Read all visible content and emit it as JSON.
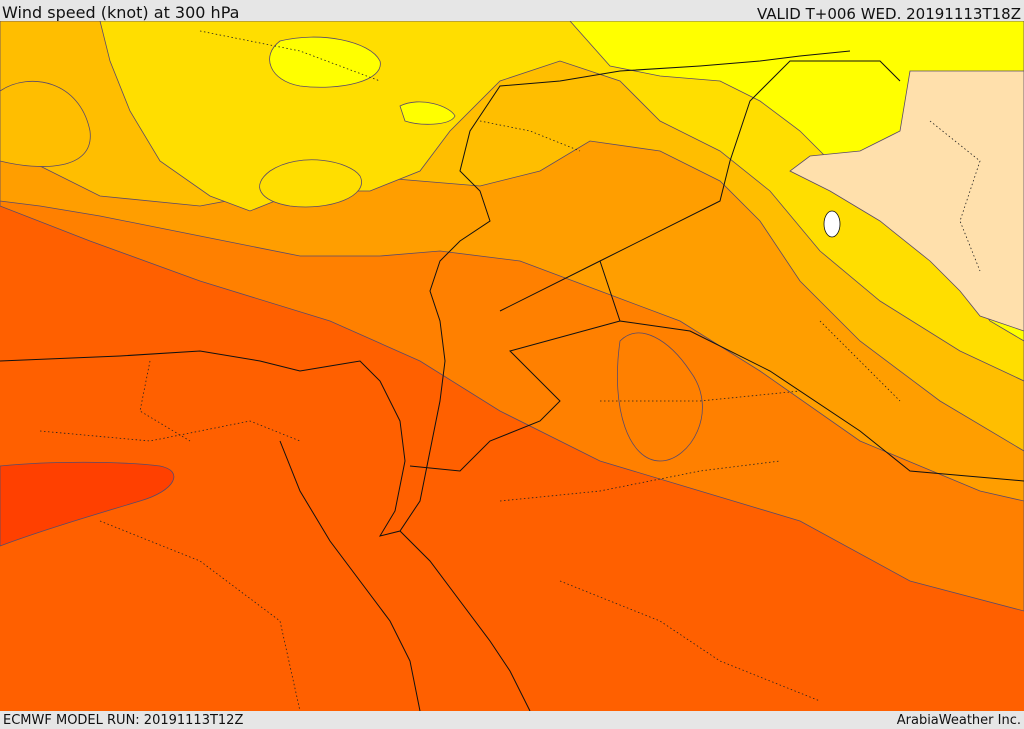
{
  "header": {
    "title": "Wind speed (knot) at 300 hPa",
    "valid": "VALID T+006 WED. 20191113T18Z"
  },
  "footer": {
    "model_run": "ECMWF MODEL RUN: 20191113T12Z",
    "credit": "ArabiaWeather Inc."
  },
  "colors": {
    "lightest": "#ffe0ac",
    "yellow": "#ffff00",
    "yellow_gold": "#ffde00",
    "gold": "#ffbe00",
    "amber": "#ff9e00",
    "orange": "#ff8000",
    "red_orange": "#ff6000",
    "red": "#ff4000",
    "contour": "#5a4a6a",
    "border": "#111111"
  }
}
